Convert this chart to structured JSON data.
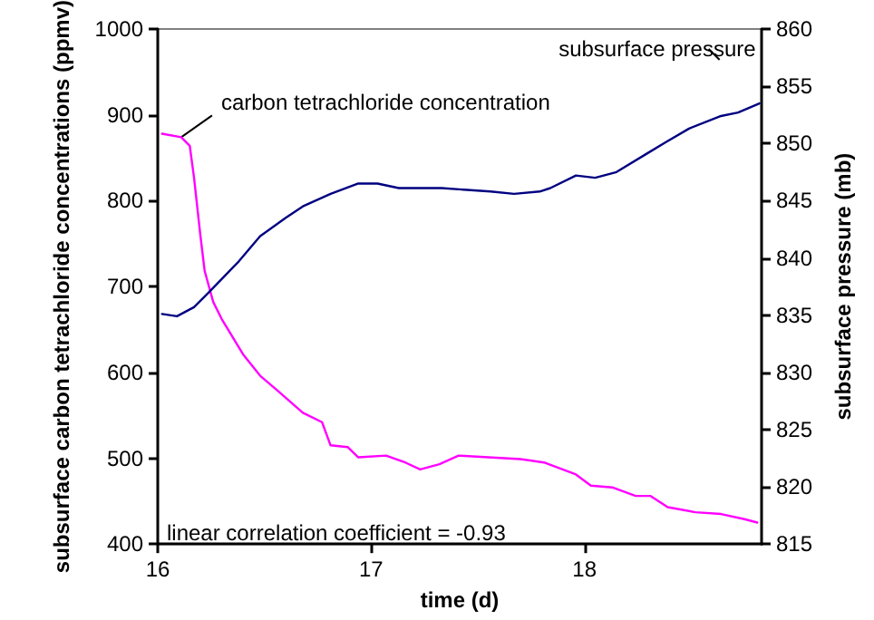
{
  "chart_data": {
    "type": "line",
    "xlabel": "time (d)",
    "ylabel": "subsurface carbon tetrachloride concentrations (ppmv)",
    "y2label": "subsurface pressure (mb)",
    "xlim": [
      16,
      18.83
    ],
    "xticks": [
      16,
      17,
      18
    ],
    "ylim": [
      400,
      1000
    ],
    "yticks": [
      400,
      500,
      600,
      700,
      800,
      900,
      1000
    ],
    "y2lim": [
      815,
      860
    ],
    "y2ticks": [
      815,
      820,
      825,
      830,
      835,
      840,
      845,
      850,
      855,
      860
    ],
    "grid": false,
    "legend": false,
    "marker": "none",
    "line_style": "solid",
    "annotations": [
      "linear correlation coefficient = -0.93"
    ],
    "series": [
      {
        "name": "carbon tetrachloride concentration",
        "color": "#ff00ff",
        "x": [
          16.02,
          16.11,
          16.15,
          16.17,
          16.2,
          16.22,
          16.26,
          16.3,
          16.4,
          16.48,
          16.56,
          16.68,
          16.77,
          16.81,
          16.89,
          16.94,
          17.07,
          17.16,
          17.23,
          17.32,
          17.41,
          17.7,
          17.81,
          17.96,
          18.03,
          18.13,
          18.24,
          18.31,
          18.39,
          18.52,
          18.64,
          18.75,
          18.81
        ],
        "values": [
          878,
          874,
          864,
          827,
          759,
          718,
          682,
          662,
          621,
          596,
          579,
          553,
          542,
          515,
          513,
          501,
          503,
          495,
          487,
          493,
          503,
          499,
          495,
          481,
          468,
          466,
          456,
          456,
          443,
          437,
          435,
          429,
          425
        ]
      },
      {
        "name": "subsurface pressure",
        "color": "#000080",
        "axis": "y2",
        "x": [
          16.02,
          16.09,
          16.17,
          16.24,
          16.38,
          16.48,
          16.6,
          16.68,
          16.81,
          16.94,
          17.03,
          17.13,
          17.33,
          17.56,
          17.67,
          17.79,
          17.84,
          17.96,
          18.05,
          18.15,
          18.3,
          18.38,
          18.49,
          18.64,
          18.72,
          18.82
        ],
        "values": [
          835.1,
          834.9,
          835.7,
          837.0,
          839.7,
          841.9,
          843.5,
          844.5,
          845.6,
          846.5,
          846.5,
          846.1,
          846.1,
          845.8,
          845.6,
          845.8,
          846.1,
          847.2,
          847.0,
          847.5,
          849.2,
          850.1,
          851.3,
          852.4,
          852.7,
          853.5
        ]
      }
    ]
  }
}
